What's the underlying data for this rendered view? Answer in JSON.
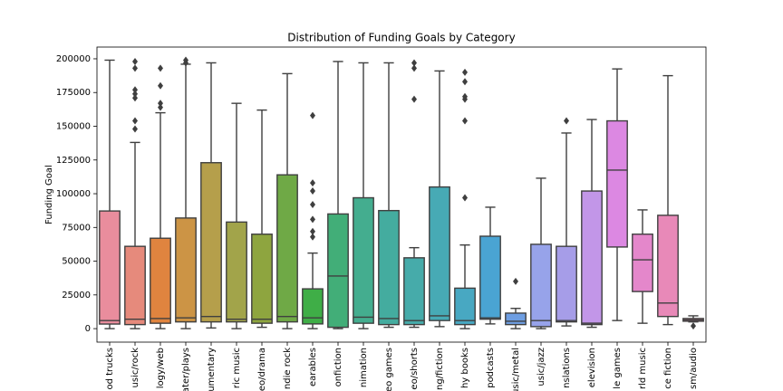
{
  "chart_data": {
    "type": "box",
    "title": "Distribution of Funding Goals by Category",
    "y_label": "Funding Goal",
    "categories": [
      "od trucks",
      "usic/rock",
      "logy/web",
      "ater/plays",
      "umentary",
      "ric music",
      "eo/drama",
      "ndie rock",
      "earables",
      "onfiction",
      "nimation",
      "eo games",
      "eo/shorts",
      "ng/fiction",
      "hy books",
      "podcasts",
      "usic/metal",
      "usic/jazz",
      "nslations",
      "elevision",
      "le games",
      "rld music",
      "ce fiction",
      "sm/audio"
    ],
    "colors": [
      "#e98d9d",
      "#e68a7c",
      "#e0843f",
      "#cc9445",
      "#b59f4b",
      "#a2a44a",
      "#8ea53f",
      "#6fa946",
      "#3fae47",
      "#42ae78",
      "#44ad8f",
      "#44ac9f",
      "#46abaa",
      "#47aab5",
      "#48a8c2",
      "#4aa4d3",
      "#6e9ee2",
      "#97a3ea",
      "#a69de8",
      "#c296e8",
      "#dc88e2",
      "#e487cb",
      "#e889b8",
      "#e98aa9"
    ],
    "boxes": [
      {
        "low": 0,
        "q1": 3400,
        "median": 6000,
        "q3": 87200,
        "high": 199000,
        "outliers": []
      },
      {
        "low": 0,
        "q1": 3000,
        "median": 7000,
        "q3": 61000,
        "high": 138000,
        "outliers": [
          198000,
          193000,
          177000,
          174000,
          171000,
          154000,
          148000
        ]
      },
      {
        "low": 0,
        "q1": 4000,
        "median": 7500,
        "q3": 67000,
        "high": 160000,
        "outliers": [
          193000,
          180000,
          167000,
          164000
        ]
      },
      {
        "low": 0,
        "q1": 5000,
        "median": 8000,
        "q3": 82000,
        "high": 196000,
        "outliers": [
          199000,
          197000
        ]
      },
      {
        "low": 500,
        "q1": 5000,
        "median": 9000,
        "q3": 123000,
        "high": 197000,
        "outliers": []
      },
      {
        "low": 0,
        "q1": 5000,
        "median": 7000,
        "q3": 79000,
        "high": 167000,
        "outliers": []
      },
      {
        "low": 1000,
        "q1": 4000,
        "median": 7000,
        "q3": 70000,
        "high": 162000,
        "outliers": []
      },
      {
        "low": 0,
        "q1": 5000,
        "median": 9000,
        "q3": 114000,
        "high": 189000,
        "outliers": []
      },
      {
        "low": 0,
        "q1": 3500,
        "median": 8000,
        "q3": 29500,
        "high": 56000,
        "outliers": [
          158000,
          108000,
          102000,
          92000,
          81000,
          72000,
          68000
        ]
      },
      {
        "low": 0,
        "q1": 1000,
        "median": 39000,
        "q3": 85000,
        "high": 198000,
        "outliers": []
      },
      {
        "low": 0,
        "q1": 4000,
        "median": 8500,
        "q3": 97000,
        "high": 197000,
        "outliers": []
      },
      {
        "low": 1000,
        "q1": 3000,
        "median": 7500,
        "q3": 87500,
        "high": 197000,
        "outliers": []
      },
      {
        "low": 1000,
        "q1": 3000,
        "median": 6000,
        "q3": 52500,
        "high": 60000,
        "outliers": [
          197000,
          193000,
          170000
        ]
      },
      {
        "low": 1500,
        "q1": 6000,
        "median": 9500,
        "q3": 105000,
        "high": 191000,
        "outliers": []
      },
      {
        "low": 0,
        "q1": 3000,
        "median": 6000,
        "q3": 30000,
        "high": 62000,
        "outliers": [
          190000,
          183000,
          172000,
          170000,
          154000,
          97000
        ]
      },
      {
        "low": 3500,
        "q1": 7000,
        "median": 8000,
        "q3": 68500,
        "high": 90000,
        "outliers": []
      },
      {
        "low": 0,
        "q1": 3000,
        "median": 5500,
        "q3": 11500,
        "high": 15000,
        "outliers": [
          35000
        ]
      },
      {
        "low": 0,
        "q1": 1500,
        "median": 6000,
        "q3": 62500,
        "high": 111500,
        "outliers": []
      },
      {
        "low": 2000,
        "q1": 5000,
        "median": 6000,
        "q3": 61000,
        "high": 145000,
        "outliers": [
          154000
        ]
      },
      {
        "low": 1000,
        "q1": 3000,
        "median": 4000,
        "q3": 102000,
        "high": 155000,
        "outliers": []
      },
      {
        "low": 6000,
        "q1": 60500,
        "median": 117500,
        "q3": 154000,
        "high": 192500,
        "outliers": []
      },
      {
        "low": 4000,
        "q1": 27500,
        "median": 51000,
        "q3": 70000,
        "high": 88000,
        "outliers": []
      },
      {
        "low": 3000,
        "q1": 9000,
        "median": 19000,
        "q3": 84000,
        "high": 187500,
        "outliers": []
      },
      {
        "low": 5000,
        "q1": 5500,
        "median": 6500,
        "q3": 7500,
        "high": 9500,
        "outliers": [
          2000
        ]
      }
    ],
    "ylim": [
      -10000,
      208700
    ],
    "yticks": [
      0,
      25000,
      50000,
      75000,
      100000,
      125000,
      150000,
      175000,
      200000
    ],
    "grid": false
  }
}
